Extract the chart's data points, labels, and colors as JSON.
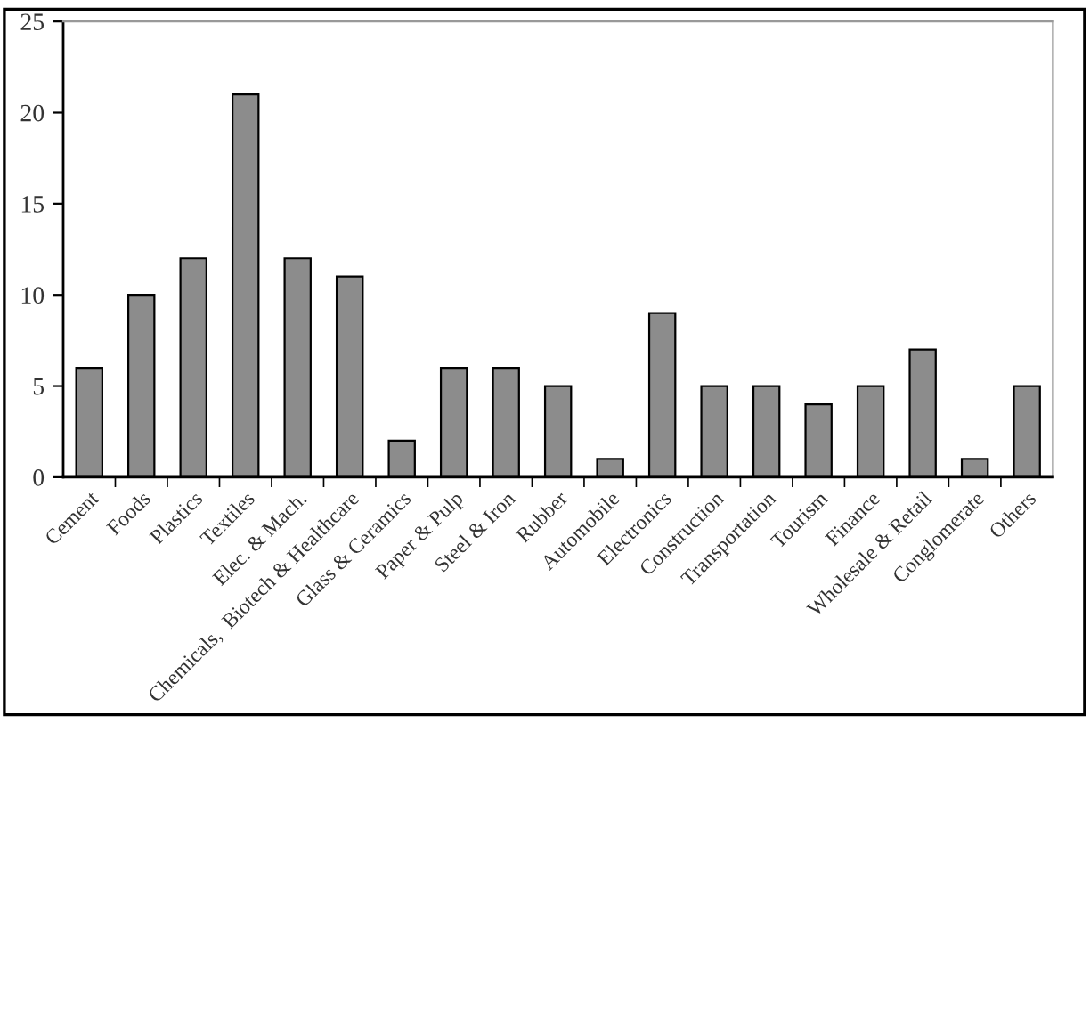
{
  "chart_data": {
    "type": "bar",
    "categories": [
      "Cement",
      "Foods",
      "Plastics",
      "Textiles",
      "Elec. & Mach.",
      "Chemicals,  Biotech & Healthcare",
      "Glass & Ceramics",
      "Paper & Pulp",
      "Steel & Iron",
      "Rubber",
      "Automobile",
      "Electronics",
      "Construction",
      "Transportation",
      "Tourism",
      "Finance",
      "Wholesale & Retail",
      "Conglomerate",
      "Others"
    ],
    "values": [
      6,
      10,
      12,
      21,
      12,
      11,
      2,
      6,
      6,
      5,
      1,
      9,
      5,
      5,
      4,
      5,
      7,
      1,
      5
    ],
    "color": "#8c8c8c",
    "ylim": [
      0,
      25
    ],
    "yticks": [
      0,
      5,
      10,
      15,
      20,
      25
    ],
    "grid": false,
    "legend": false
  }
}
